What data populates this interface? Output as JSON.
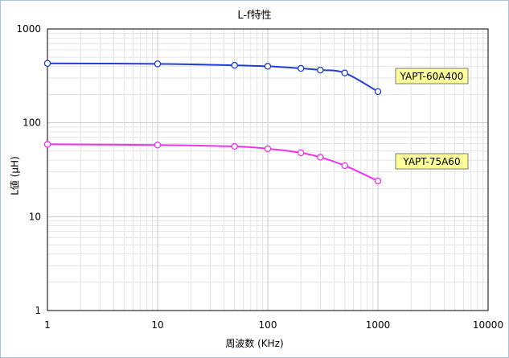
{
  "chart_data": {
    "type": "line",
    "title": "L-f特性",
    "xlabel": "周波数 (KHz)",
    "ylabel": "L値 (μH)",
    "x_scale": "log",
    "y_scale": "log",
    "xlim": [
      1,
      10000
    ],
    "ylim": [
      1,
      1000
    ],
    "x_ticks": [
      "1",
      "10",
      "100",
      "1000",
      "10000"
    ],
    "y_ticks": [
      "1",
      "10",
      "100",
      "1000"
    ],
    "grid": true,
    "series": [
      {
        "name": "YAPT-60A400",
        "color": "#1f3fd8",
        "x": [
          1,
          10,
          50,
          100,
          200,
          300,
          500,
          1000
        ],
        "values": [
          430,
          425,
          410,
          400,
          380,
          365,
          340,
          215
        ]
      },
      {
        "name": "YAPT-75A60",
        "color": "#ee33ee",
        "x": [
          1,
          10,
          50,
          100,
          200,
          300,
          500,
          1000
        ],
        "values": [
          59,
          58,
          56,
          53,
          48,
          43,
          35,
          24
        ]
      }
    ]
  }
}
